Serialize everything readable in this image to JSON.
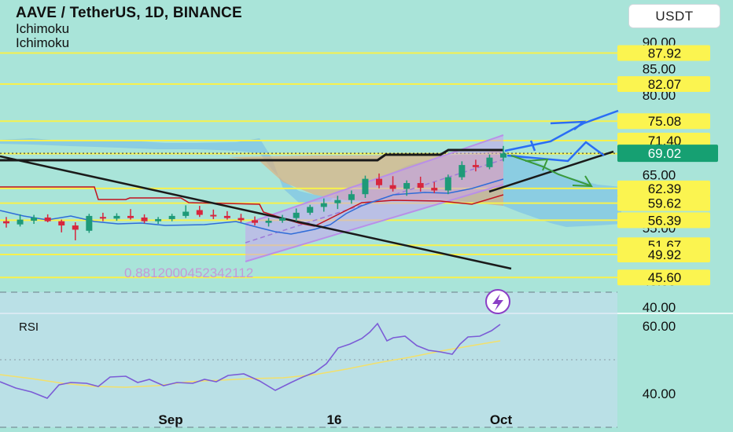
{
  "header": {
    "title": "AAVE / TetherUS, 1D, BINANCE",
    "indicators": [
      "Ichimoku",
      "Ichimoku"
    ],
    "currency_button": "USDT"
  },
  "colors": {
    "background": "#a9e4d9",
    "bull_candle": "#1e9a78",
    "bear_candle": "#d7263d",
    "level_line": "#f7f14c",
    "badge_fill": "#fbf450",
    "current_price_badge": "#16a072",
    "ichimoku_cloud": "#7fc3e6",
    "channel": "#c9a3ee",
    "rsi_line": "#7b5cd6",
    "rsi_ma": "#f3e06a"
  },
  "chart_data": {
    "type": "candlestick",
    "symbol": "AAVE / TetherUS",
    "timeframe": "1D",
    "exchange": "BINANCE",
    "y_axis_ticks": [
      90.0,
      85.0,
      80.0,
      75.0,
      70.0,
      65.0,
      60.0,
      55.0,
      50.0,
      45.0,
      40.0
    ],
    "ylim": [
      39.5,
      91.5
    ],
    "x_axis_labels": [
      "Sep",
      "16",
      "Oct"
    ],
    "price_levels": [
      {
        "label": "87.92",
        "value": 87.92
      },
      {
        "label": "82.07",
        "value": 82.07
      },
      {
        "label": "75.08",
        "value": 75.08
      },
      {
        "label": "71.40",
        "value": 71.4
      },
      {
        "label": "68.95",
        "value": 68.95
      },
      {
        "label": "62.39",
        "value": 62.39
      },
      {
        "label": "59.62",
        "value": 59.62
      },
      {
        "label": "56.39",
        "value": 56.39
      },
      {
        "label": "51.67",
        "value": 51.67
      },
      {
        "label": "49.92",
        "value": 49.92
      },
      {
        "label": "45.60",
        "value": 45.6
      }
    ],
    "current_price": {
      "label": "69.02",
      "value": 69.02
    },
    "fib_label": "0.8812000452342112",
    "candles": [
      {
        "o": 56.2,
        "h": 57.0,
        "l": 55.0,
        "c": 55.8
      },
      {
        "o": 55.6,
        "h": 57.5,
        "l": 55.2,
        "c": 56.5
      },
      {
        "o": 56.3,
        "h": 57.4,
        "l": 55.7,
        "c": 56.9
      },
      {
        "o": 56.9,
        "h": 57.5,
        "l": 56.0,
        "c": 56.2
      },
      {
        "o": 56.2,
        "h": 56.5,
        "l": 54.1,
        "c": 55.4
      },
      {
        "o": 55.4,
        "h": 56.0,
        "l": 52.6,
        "c": 54.6
      },
      {
        "o": 54.4,
        "h": 57.6,
        "l": 54.0,
        "c": 57.2
      },
      {
        "o": 57.0,
        "h": 57.8,
        "l": 56.2,
        "c": 56.7
      },
      {
        "o": 56.7,
        "h": 57.7,
        "l": 56.3,
        "c": 57.2
      },
      {
        "o": 57.2,
        "h": 58.5,
        "l": 56.5,
        "c": 56.8
      },
      {
        "o": 56.9,
        "h": 57.5,
        "l": 55.8,
        "c": 56.2
      },
      {
        "o": 56.2,
        "h": 57.0,
        "l": 55.7,
        "c": 56.6
      },
      {
        "o": 56.6,
        "h": 57.6,
        "l": 56.2,
        "c": 57.2
      },
      {
        "o": 57.2,
        "h": 59.2,
        "l": 56.8,
        "c": 58.0
      },
      {
        "o": 58.3,
        "h": 59.1,
        "l": 57.0,
        "c": 57.4
      },
      {
        "o": 57.4,
        "h": 58.4,
        "l": 56.6,
        "c": 57.2
      },
      {
        "o": 57.2,
        "h": 58.1,
        "l": 56.5,
        "c": 56.8
      },
      {
        "o": 56.8,
        "h": 57.6,
        "l": 56.0,
        "c": 56.4
      },
      {
        "o": 56.4,
        "h": 57.1,
        "l": 55.4,
        "c": 55.9
      },
      {
        "o": 55.9,
        "h": 56.8,
        "l": 55.2,
        "c": 56.3
      },
      {
        "o": 56.3,
        "h": 57.4,
        "l": 55.9,
        "c": 56.8
      },
      {
        "o": 56.8,
        "h": 58.6,
        "l": 56.2,
        "c": 57.8
      },
      {
        "o": 57.8,
        "h": 59.3,
        "l": 57.4,
        "c": 58.9
      },
      {
        "o": 58.9,
        "h": 60.5,
        "l": 58.0,
        "c": 59.6
      },
      {
        "o": 59.6,
        "h": 61.0,
        "l": 58.5,
        "c": 60.2
      },
      {
        "o": 60.2,
        "h": 62.0,
        "l": 59.5,
        "c": 61.3
      },
      {
        "o": 61.3,
        "h": 64.8,
        "l": 60.6,
        "c": 64.2
      },
      {
        "o": 64.2,
        "h": 65.2,
        "l": 62.4,
        "c": 63.0
      },
      {
        "o": 63.0,
        "h": 64.7,
        "l": 61.8,
        "c": 62.3
      },
      {
        "o": 62.3,
        "h": 63.9,
        "l": 61.0,
        "c": 63.4
      },
      {
        "o": 63.4,
        "h": 64.6,
        "l": 61.8,
        "c": 62.5
      },
      {
        "o": 62.5,
        "h": 63.6,
        "l": 61.5,
        "c": 62.0
      },
      {
        "o": 62.0,
        "h": 65.0,
        "l": 61.3,
        "c": 64.5
      },
      {
        "o": 64.5,
        "h": 67.5,
        "l": 64.0,
        "c": 66.8
      },
      {
        "o": 66.8,
        "h": 67.8,
        "l": 65.6,
        "c": 66.4
      },
      {
        "o": 66.4,
        "h": 68.8,
        "l": 66.0,
        "c": 68.2
      },
      {
        "o": 68.2,
        "h": 70.4,
        "l": 67.5,
        "c": 69.0
      }
    ],
    "rsi": {
      "label": "RSI",
      "ticks": [
        60.0,
        40.0
      ],
      "ylim": [
        26,
        80
      ]
    }
  }
}
